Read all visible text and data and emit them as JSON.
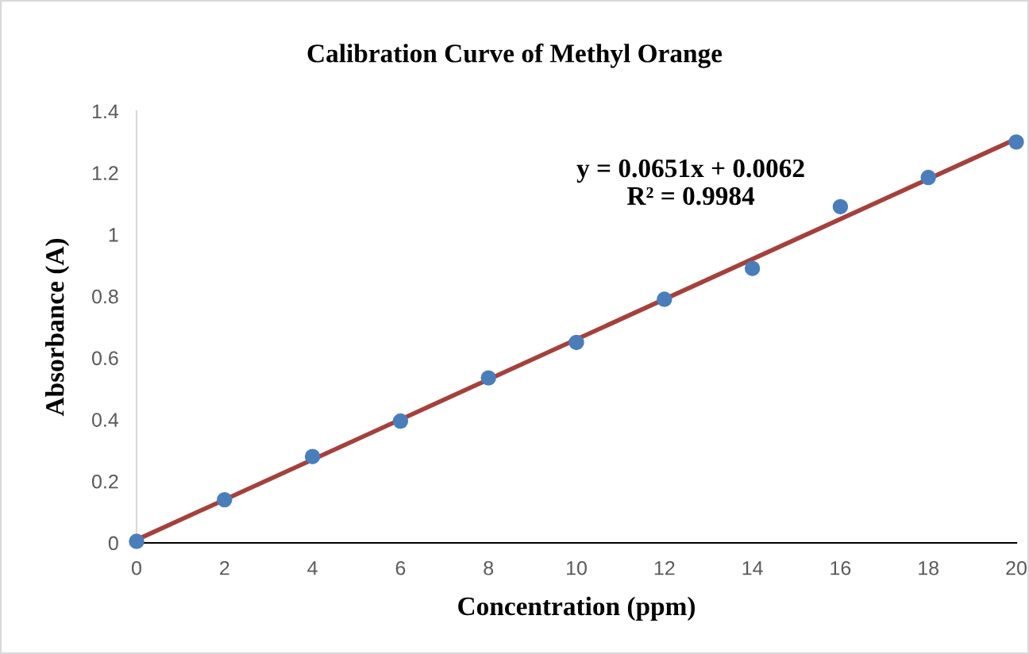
{
  "chart_data": {
    "type": "scatter",
    "title": "Calibration Curve of Methyl Orange",
    "xlabel": "Concentration (ppm)",
    "ylabel": "Absorbance (A)",
    "x": [
      0,
      2,
      4,
      6,
      8,
      10,
      12,
      14,
      16,
      18,
      20
    ],
    "series": [
      {
        "color": "#4a7ebb",
        "marker": "circle",
        "values": [
          0.005,
          0.14,
          0.28,
          0.395,
          0.535,
          0.65,
          0.79,
          0.89,
          1.09,
          1.185,
          1.3
        ]
      },
      {
        "type": "line",
        "color": "#a5403c",
        "x": [
          0,
          20
        ],
        "values": [
          0.01,
          1.31
        ],
        "line_style": "solid",
        "marker": "none"
      }
    ],
    "annotations": [
      "y = 0.0651x + 0.0062\nR² = 0.9984"
    ],
    "xlim": [
      0,
      20
    ],
    "ylim": [
      0,
      1.4
    ],
    "xticks": [
      0,
      2,
      4,
      6,
      8,
      10,
      12,
      14,
      16,
      18,
      20
    ],
    "yticks": [
      0,
      0.2,
      0.4,
      0.6,
      0.8,
      1,
      1.2,
      1.4
    ],
    "grid": false,
    "legend": false
  }
}
